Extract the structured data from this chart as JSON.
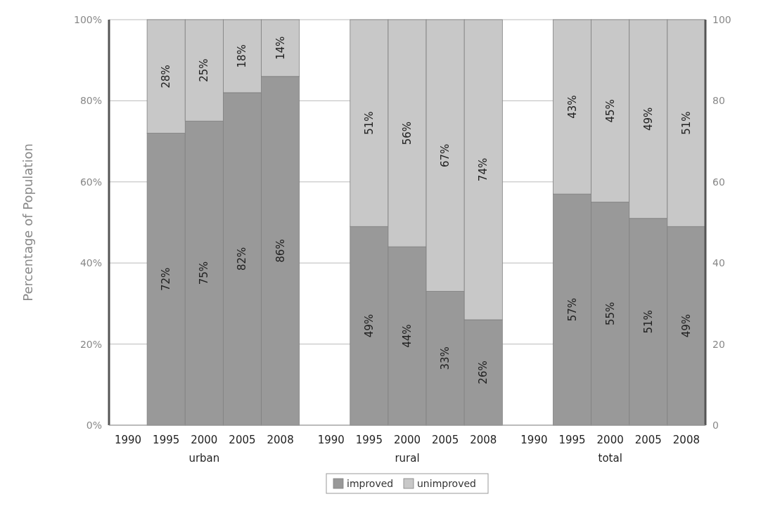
{
  "chart_data": {
    "type": "bar",
    "stacked": true,
    "ylabel": "Percentage of Population",
    "categories": [
      "1990",
      "1995",
      "2000",
      "2005",
      "2008",
      "1990",
      "1995",
      "2000",
      "2005",
      "2008",
      "1990",
      "1995",
      "2000",
      "2005",
      "2008"
    ],
    "annotations": [
      "urban",
      "rural",
      "total"
    ],
    "series": [
      {
        "name": "improved",
        "color": "#999999",
        "values": [
          null,
          72,
          75,
          82,
          86,
          null,
          49,
          44,
          33,
          26,
          null,
          57,
          55,
          51,
          49
        ],
        "value_labels": [
          null,
          "72%",
          "75%",
          "82%",
          "86%",
          null,
          "49%",
          "44%",
          "33%",
          "26%",
          null,
          "57%",
          "55%",
          "51%",
          "49%"
        ]
      },
      {
        "name": "unimproved",
        "color": "#c8c8c8",
        "values": [
          null,
          28,
          25,
          18,
          14,
          null,
          51,
          56,
          67,
          74,
          null,
          43,
          45,
          49,
          51
        ],
        "value_labels": [
          null,
          "28%",
          "25%",
          "18%",
          "14%",
          null,
          "51%",
          "56%",
          "67%",
          "74%",
          null,
          "43%",
          "45%",
          "49%",
          "51%"
        ]
      }
    ],
    "ylim": [
      0,
      100
    ],
    "yticks": [
      {
        "value": 0,
        "label": "0%"
      },
      {
        "value": 20,
        "label": "20%"
      },
      {
        "value": 40,
        "label": "40%"
      },
      {
        "value": 60,
        "label": "60%"
      },
      {
        "value": 80,
        "label": "80%"
      },
      {
        "value": 100,
        "label": "100%"
      }
    ],
    "y2lim": [
      0,
      100
    ],
    "y2ticks": [
      0,
      20,
      40,
      60,
      80,
      100
    ],
    "grid": "y",
    "legend": "bottom"
  }
}
